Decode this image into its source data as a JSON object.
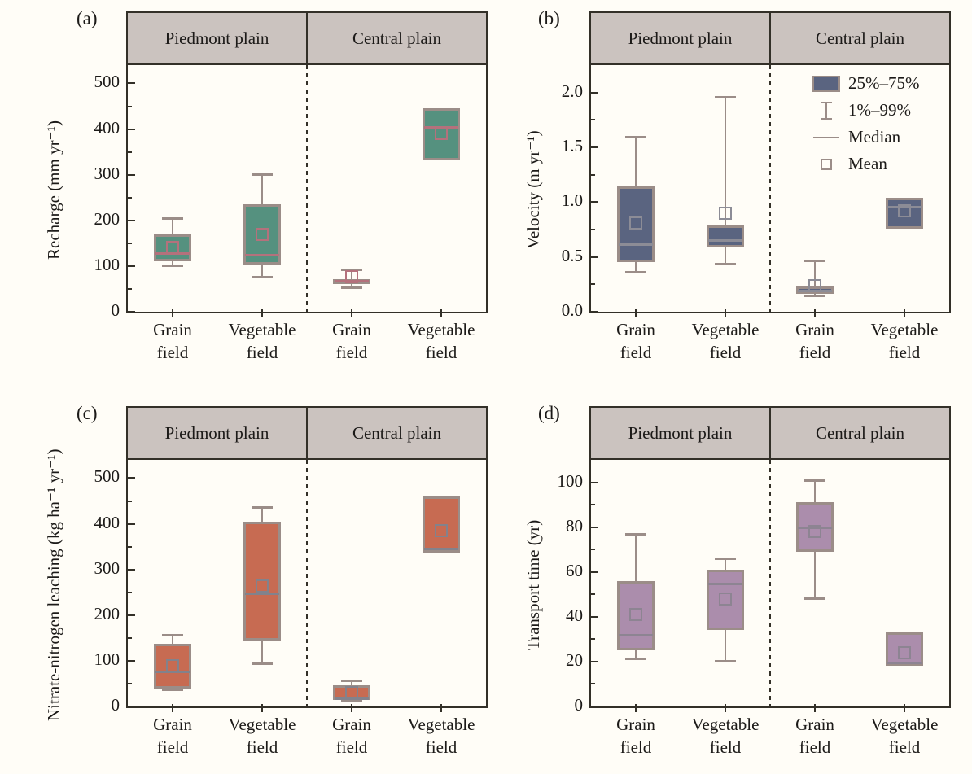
{
  "chart_data": {
    "type": "box",
    "description": "Four-panel box plot figure comparing Piedmont plain and Central plain, grain vs vegetable fields",
    "legend": {
      "items": [
        {
          "icon": "box-swatch-icon",
          "label": "25%–75%"
        },
        {
          "icon": "whisker-icon",
          "label": "1%–99%"
        },
        {
          "icon": "median-line-icon",
          "label": "Median"
        },
        {
          "icon": "mean-square-icon",
          "label": "Mean"
        }
      ]
    },
    "colors": {
      "background": "#fffdf7",
      "band_fill": "#cbc3bf",
      "axis": "#333028",
      "whisker": "#9b8d88",
      "box_border": "#9b8d88"
    },
    "panels": [
      {
        "id": "a",
        "label": "(a)",
        "ylabel": "Recharge (mm yr⁻¹)",
        "ymax": 540,
        "yticks": [
          {
            "v": 0,
            "t": "0"
          },
          {
            "v": 100,
            "t": "100"
          },
          {
            "v": 200,
            "t": "200"
          },
          {
            "v": 300,
            "t": "300"
          },
          {
            "v": 400,
            "t": "400"
          },
          {
            "v": 500,
            "t": "500"
          }
        ],
        "yminor": [
          50,
          150,
          250,
          350,
          450
        ],
        "groups": [
          "Piedmont plain",
          "Central plain"
        ],
        "categories": [
          [
            "Grain",
            "field"
          ],
          [
            "Vegetable",
            "field"
          ],
          [
            "Grain",
            "field"
          ],
          [
            "Vegetable",
            "field"
          ]
        ],
        "box_fill": "#55917f",
        "marker_color": "#b4717c",
        "boxes": [
          {
            "low": 100,
            "q1": 110,
            "median": 128,
            "mean": 141,
            "q3": 170,
            "high": 205
          },
          {
            "low": 75,
            "q1": 103,
            "median": 125,
            "mean": 169,
            "q3": 235,
            "high": 302
          },
          {
            "low": 52,
            "q1": 62,
            "median": 67,
            "mean": 76,
            "q3": 72,
            "high": 92
          },
          {
            "low": null,
            "q1": 331,
            "median": 404,
            "mean": 391,
            "q3": 445,
            "high": null
          }
        ]
      },
      {
        "id": "b",
        "label": "(b)",
        "ylabel": "Velocity (m yr⁻¹)",
        "ymax": 2.25,
        "yticks": [
          {
            "v": 0,
            "t": "0.0"
          },
          {
            "v": 0.5,
            "t": "0.5"
          },
          {
            "v": 1.0,
            "t": "1.0"
          },
          {
            "v": 1.5,
            "t": "1.5"
          },
          {
            "v": 2.0,
            "t": "2.0"
          }
        ],
        "yminor": [
          0.25,
          0.75,
          1.25,
          1.75
        ],
        "groups": [
          "Piedmont plain",
          "Central plain"
        ],
        "categories": [
          [
            "Grain",
            "field"
          ],
          [
            "Vegetable",
            "field"
          ],
          [
            "Grain",
            "field"
          ],
          [
            "Vegetable",
            "field"
          ]
        ],
        "box_fill": "#5a6480",
        "marker_color": "#8c8c96",
        "has_legend": true,
        "boxes": [
          {
            "low": 0.36,
            "q1": 0.45,
            "median": 0.62,
            "mean": 0.81,
            "q3": 1.14,
            "high": 1.6
          },
          {
            "low": 0.43,
            "q1": 0.59,
            "median": 0.65,
            "mean": 0.9,
            "q3": 0.79,
            "high": 1.96
          },
          {
            "low": 0.14,
            "q1": 0.16,
            "median": 0.19,
            "mean": 0.24,
            "q3": 0.23,
            "high": 0.47
          },
          {
            "low": null,
            "q1": 0.76,
            "median": 0.96,
            "mean": 0.92,
            "q3": 1.04,
            "high": null
          }
        ]
      },
      {
        "id": "c",
        "label": "(c)",
        "ylabel": "Nitrate-nitrogen leaching (kg ha⁻¹ yr⁻¹)",
        "ymax": 540,
        "yticks": [
          {
            "v": 0,
            "t": "0"
          },
          {
            "v": 100,
            "t": "100"
          },
          {
            "v": 200,
            "t": "200"
          },
          {
            "v": 300,
            "t": "300"
          },
          {
            "v": 400,
            "t": "400"
          },
          {
            "v": 500,
            "t": "500"
          }
        ],
        "yminor": [
          50,
          150,
          250,
          350,
          450
        ],
        "groups": [
          "Piedmont plain",
          "Central plain"
        ],
        "categories": [
          [
            "Grain",
            "field"
          ],
          [
            "Vegetable",
            "field"
          ],
          [
            "Grain",
            "field"
          ],
          [
            "Vegetable",
            "field"
          ]
        ],
        "box_fill": "#c76b52",
        "marker_color": "#82828c",
        "boxes": [
          {
            "low": 35,
            "q1": 40,
            "median": 76,
            "mean": 89,
            "q3": 137,
            "high": 156
          },
          {
            "low": 92,
            "q1": 145,
            "median": 248,
            "mean": 264,
            "q3": 404,
            "high": 436
          },
          {
            "low": 12,
            "q1": 14,
            "median": 17,
            "mean": 30,
            "q3": 46,
            "high": 57
          },
          {
            "low": null,
            "q1": 337,
            "median": 346,
            "mean": 385,
            "q3": 459,
            "high": null
          }
        ]
      },
      {
        "id": "d",
        "label": "(d)",
        "ylabel": "Transport time (yr)",
        "ymax": 110,
        "yticks": [
          {
            "v": 0,
            "t": "0"
          },
          {
            "v": 20,
            "t": "20"
          },
          {
            "v": 40,
            "t": "40"
          },
          {
            "v": 60,
            "t": "60"
          },
          {
            "v": 80,
            "t": "80"
          },
          {
            "v": 100,
            "t": "100"
          }
        ],
        "yminor": [
          10,
          30,
          50,
          70,
          90
        ],
        "groups": [
          "Piedmont plain",
          "Central plain"
        ],
        "categories": [
          [
            "Grain",
            "field"
          ],
          [
            "Vegetable",
            "field"
          ],
          [
            "Grain",
            "field"
          ],
          [
            "Vegetable",
            "field"
          ]
        ],
        "box_fill": "#ab8dac",
        "marker_color": "#8d8492",
        "boxes": [
          {
            "low": 21,
            "q1": 25,
            "median": 32,
            "mean": 41,
            "q3": 56,
            "high": 77
          },
          {
            "low": 20,
            "q1": 34,
            "median": 55,
            "mean": 48,
            "q3": 61,
            "high": 66
          },
          {
            "low": 48,
            "q1": 69,
            "median": 80,
            "mean": 78,
            "q3": 91,
            "high": 101
          },
          {
            "low": null,
            "q1": 18,
            "median": 19.5,
            "mean": 24,
            "q3": 33,
            "high": null
          }
        ]
      }
    ]
  }
}
